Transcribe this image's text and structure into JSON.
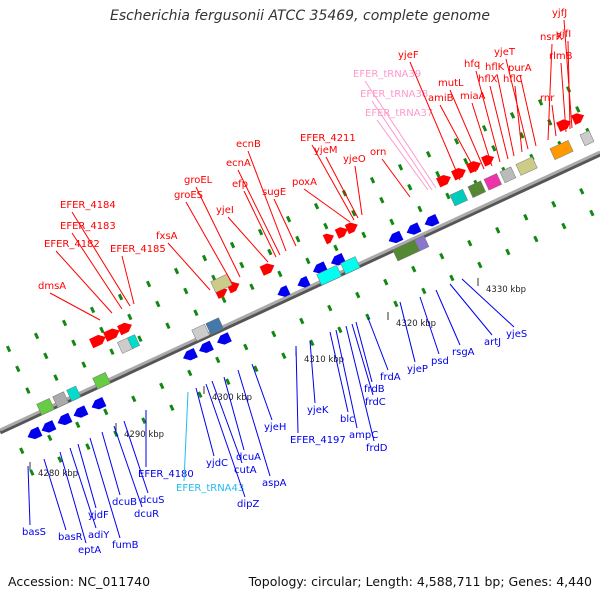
{
  "header": {
    "title": "Escherichia fergusonii ATCC 35469, complete genome"
  },
  "footer": {
    "accession": "Accession: NC_011740",
    "stats": "Topology: circular; Length: 4,588,711 bp; Genes: 4,440"
  },
  "colors": {
    "forward": "#ff0000",
    "reverse": "#0000ee",
    "trna": "#ff99cc",
    "trna_rev": "#22bbee"
  },
  "ruler": [
    {
      "label": "4280 kbp"
    },
    {
      "label": "4290 kbp"
    },
    {
      "label": "4300 kbp"
    },
    {
      "label": "4310 kbp"
    },
    {
      "label": "4320 kbp"
    },
    {
      "label": "4330 kbp"
    }
  ],
  "genes_top": [
    {
      "label": "dmsA",
      "color": "red"
    },
    {
      "label": "EFER_4182",
      "color": "red"
    },
    {
      "label": "EFER_4183",
      "color": "red"
    },
    {
      "label": "EFER_4184",
      "color": "red"
    },
    {
      "label": "EFER_4185",
      "color": "red"
    },
    {
      "label": "fxsA",
      "color": "red"
    },
    {
      "label": "groES",
      "color": "red"
    },
    {
      "label": "groEL",
      "color": "red"
    },
    {
      "label": "yjeI",
      "color": "red"
    },
    {
      "label": "efp",
      "color": "red"
    },
    {
      "label": "ecnA",
      "color": "red"
    },
    {
      "label": "ecnB",
      "color": "red"
    },
    {
      "label": "sugE",
      "color": "red"
    },
    {
      "label": "poxA",
      "color": "red"
    },
    {
      "label": "EFER_4211",
      "color": "red"
    },
    {
      "label": "yjeM",
      "color": "red"
    },
    {
      "label": "yjeO",
      "color": "red"
    },
    {
      "label": "orn",
      "color": "red"
    },
    {
      "label": "EFER_tRNA37",
      "color": "pink"
    },
    {
      "label": "EFER_tRNA38",
      "color": "pink"
    },
    {
      "label": "EFER_tRNA39",
      "color": "pink"
    },
    {
      "label": "yjeF",
      "color": "red"
    },
    {
      "label": "amiB",
      "color": "red"
    },
    {
      "label": "mutL",
      "color": "red"
    },
    {
      "label": "miaA",
      "color": "red"
    },
    {
      "label": "hfq",
      "color": "red"
    },
    {
      "label": "hflX",
      "color": "red"
    },
    {
      "label": "hflK",
      "color": "red"
    },
    {
      "label": "hflC",
      "color": "red"
    },
    {
      "label": "yjeT",
      "color": "red"
    },
    {
      "label": "purA",
      "color": "red"
    },
    {
      "label": "nsrR",
      "color": "red"
    },
    {
      "label": "rnr",
      "color": "red"
    },
    {
      "label": "rlmB",
      "color": "red"
    },
    {
      "label": "yjfI",
      "color": "red"
    },
    {
      "label": "yjfJ",
      "color": "red"
    }
  ],
  "genes_bottom": [
    {
      "label": "basS",
      "color": "blue"
    },
    {
      "label": "basR",
      "color": "blue"
    },
    {
      "label": "eptA",
      "color": "blue"
    },
    {
      "label": "adiY",
      "color": "blue"
    },
    {
      "label": "yjdF",
      "color": "blue"
    },
    {
      "label": "fumB",
      "color": "blue"
    },
    {
      "label": "dcuB",
      "color": "blue"
    },
    {
      "label": "dcuR",
      "color": "blue"
    },
    {
      "label": "dcuS",
      "color": "blue"
    },
    {
      "label": "EFER_4180",
      "color": "blue"
    },
    {
      "label": "EFER_tRNA43",
      "color": "cyan"
    },
    {
      "label": "yjdC",
      "color": "blue"
    },
    {
      "label": "dipZ",
      "color": "blue"
    },
    {
      "label": "cutA",
      "color": "blue"
    },
    {
      "label": "dcuA",
      "color": "blue"
    },
    {
      "label": "aspA",
      "color": "blue"
    },
    {
      "label": "yjeH",
      "color": "blue"
    },
    {
      "label": "EFER_4197",
      "color": "blue"
    },
    {
      "label": "yjeK",
      "color": "blue"
    },
    {
      "label": "blc",
      "color": "blue"
    },
    {
      "label": "ampC",
      "color": "blue"
    },
    {
      "label": "frdD",
      "color": "blue"
    },
    {
      "label": "frdC",
      "color": "blue"
    },
    {
      "label": "frdB",
      "color": "blue"
    },
    {
      "label": "frdA",
      "color": "blue"
    },
    {
      "label": "yjeP",
      "color": "blue"
    },
    {
      "label": "psd",
      "color": "blue"
    },
    {
      "label": "rsgA",
      "color": "blue"
    },
    {
      "label": "artJ",
      "color": "blue"
    },
    {
      "label": "yjeS",
      "color": "blue"
    }
  ]
}
